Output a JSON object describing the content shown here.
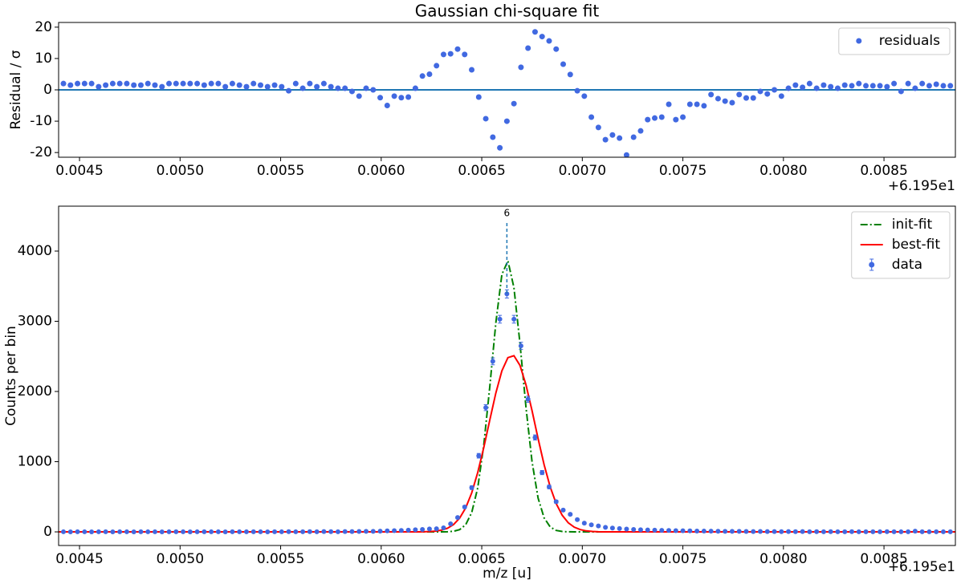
{
  "chart_data": [
    {
      "type": "scatter",
      "title": "Gaussian chi-square fit",
      "ylabel": "Residual / σ",
      "x_offset_label": "+6.195e1",
      "xlim": [
        0.004396,
        0.008855
      ],
      "xticks": [
        0.0045,
        {
          "value": 0.005,
          "label": "0.0050"
        },
        0.0055,
        {
          "value": 0.006,
          "label": "0.0060"
        },
        0.0065,
        {
          "value": 0.007,
          "label": "0.0070"
        },
        0.0075,
        {
          "value": 0.008,
          "label": "0.0080"
        },
        0.0085
      ],
      "ylim": [
        -21.5,
        21.5
      ],
      "yticks": [
        -20,
        -10,
        0,
        10,
        20
      ],
      "hline": 0,
      "hline_color": "#1f77b4",
      "legend": "upper right",
      "series": [
        {
          "name": "residuals",
          "color": "#4169e1",
          "x": [
            0.00442,
            0.004455,
            0.00449,
            0.004525,
            0.00456,
            0.004595,
            0.00463,
            0.004665,
            0.0047,
            0.004735,
            0.00477,
            0.004805,
            0.00484,
            0.004875,
            0.00491,
            0.004945,
            0.00498,
            0.005015,
            0.00505,
            0.005085,
            0.00512,
            0.005155,
            0.00519,
            0.005225,
            0.00526,
            0.005295,
            0.00533,
            0.005365,
            0.0054,
            0.005435,
            0.00547,
            0.005505,
            0.00554,
            0.005575,
            0.00561,
            0.005645,
            0.00568,
            0.005715,
            0.00575,
            0.005785,
            0.00582,
            0.005855,
            0.00589,
            0.005925,
            0.00596,
            0.005995,
            0.00603,
            0.006065,
            0.0061,
            0.006135,
            0.00617,
            0.006205,
            0.00624,
            0.006275,
            0.00631,
            0.006345,
            0.00638,
            0.006415,
            0.00645,
            0.006485,
            0.00652,
            0.006555,
            0.00659,
            0.006625,
            0.00666,
            0.006695,
            0.00673,
            0.006765,
            0.0068,
            0.006835,
            0.00687,
            0.006905,
            0.00694,
            0.006975,
            0.00701,
            0.007045,
            0.00708,
            0.007115,
            0.00715,
            0.007185,
            0.00722,
            0.007255,
            0.00729,
            0.007325,
            0.00736,
            0.007395,
            0.00743,
            0.007465,
            0.0075,
            0.007535,
            0.00757,
            0.007605,
            0.00764,
            0.007675,
            0.00771,
            0.007745,
            0.00778,
            0.007815,
            0.00785,
            0.007885,
            0.00792,
            0.007955,
            0.00799,
            0.008025,
            0.00806,
            0.008095,
            0.00813,
            0.008165,
            0.0082,
            0.008235,
            0.00827,
            0.008305,
            0.00834,
            0.008375,
            0.00841,
            0.008445,
            0.00848,
            0.008515,
            0.00855,
            0.008585,
            0.00862,
            0.008655,
            0.00869,
            0.008725,
            0.00876,
            0.008795,
            0.00883
          ],
          "values": [
            2,
            1.5,
            2,
            2,
            2,
            1,
            1.5,
            2,
            2,
            2,
            1.5,
            1.5,
            2,
            1.5,
            1,
            2,
            2,
            2,
            2,
            2,
            1.5,
            2,
            2,
            1,
            2,
            1.5,
            1,
            2,
            1.5,
            1,
            1.5,
            1,
            -0.3,
            2,
            0.5,
            2,
            1,
            2,
            1,
            0.5,
            0.5,
            -0.5,
            -2,
            0.5,
            0,
            -2.5,
            -5,
            -2,
            -2.5,
            -2.3,
            0.5,
            4.4,
            5,
            7.7,
            11.3,
            11.5,
            13,
            11.3,
            6.4,
            -2.3,
            -9.2,
            -15.1,
            -18.5,
            -10,
            -4.4,
            7.2,
            13.3,
            18.5,
            17,
            15.6,
            13,
            8.2,
            4.9,
            -0.3,
            -2,
            -8.7,
            -12,
            -15.9,
            -14.4,
            -15.4,
            -20.8,
            -15.1,
            -13.1,
            -9.5,
            -9,
            -8.7,
            -4.6,
            -9.5,
            -8.7,
            -4.6,
            -4.6,
            -5.1,
            -1.5,
            -2.8,
            -3.6,
            -4.1,
            -1.5,
            -2.6,
            -2.6,
            -0.5,
            -1.3,
            0,
            -2,
            0.5,
            1.5,
            0.8,
            2,
            0.5,
            1.5,
            1,
            0.5,
            1.5,
            1.3,
            2,
            1.3,
            1.3,
            1.3,
            1,
            2,
            -0.5,
            2,
            0.5,
            2,
            1.3,
            1.8,
            1.3,
            1.3
          ]
        }
      ]
    },
    {
      "type": "line",
      "xlabel": "m/z [u]",
      "ylabel": "Counts per bin",
      "x_offset_label": "+6.195e1",
      "xlim": [
        0.004396,
        0.008855
      ],
      "xticks": [
        0.0045,
        {
          "value": 0.005,
          "label": "0.0050"
        },
        0.0055,
        {
          "value": 0.006,
          "label": "0.0060"
        },
        0.0065,
        {
          "value": 0.007,
          "label": "0.0070"
        },
        0.0075,
        {
          "value": 0.008,
          "label": "0.0080"
        },
        0.0085
      ],
      "ylim": [
        -194,
        4640
      ],
      "yticks": [
        0,
        1000,
        2000,
        3000,
        4000
      ],
      "legend": "upper right",
      "annotations": [
        {
          "text": "6",
          "x": 0.006625,
          "y": 4400,
          "color": "#1f77b4"
        }
      ],
      "series": [
        {
          "name": "init-fit",
          "kind": "line",
          "dash": "dashdot",
          "color": "#008000",
          "x": [
            0.004396,
            0.006,
            0.00603,
            0.00606,
            0.00609,
            0.00612,
            0.00615,
            0.00618,
            0.00621,
            0.00624,
            0.00627,
            0.0063,
            0.00633,
            0.00636,
            0.00639,
            0.00642,
            0.00645,
            0.00648,
            0.00651,
            0.00654,
            0.00657,
            0.0066,
            0.00663,
            0.00666,
            0.00669,
            0.00672,
            0.00675,
            0.00678,
            0.00681,
            0.00684,
            0.00687,
            0.0069,
            0.00693,
            0.00696,
            0.00699,
            0.00702,
            0.00705,
            0.00708,
            0.00711,
            0.00714,
            0.00717,
            0.0072,
            0.00723,
            0.00726,
            0.00729,
            0.00732,
            0.00735,
            0.00738,
            0.008855
          ],
          "values": [
            0,
            0,
            0,
            0,
            0,
            0,
            0,
            0,
            0,
            0,
            0,
            0.4,
            2.1,
            8.9,
            32,
            102,
            274,
            627,
            1236,
            2069,
            2977,
            3666,
            3862,
            3480,
            2685,
            1772,
            1000,
            483,
            200,
            71,
            21,
            5.5,
            1.2,
            0.2,
            0,
            0,
            0,
            0,
            0,
            0,
            0,
            0,
            0,
            0,
            0,
            0,
            0,
            0,
            0
          ]
        },
        {
          "name": "best-fit",
          "kind": "line",
          "dash": "solid",
          "color": "#ff0000",
          "x": [
            0.004396,
            0.006,
            0.00603,
            0.00606,
            0.00609,
            0.00612,
            0.00615,
            0.00618,
            0.00621,
            0.00624,
            0.00627,
            0.0063,
            0.00633,
            0.00636,
            0.00639,
            0.00642,
            0.00645,
            0.00648,
            0.00651,
            0.00654,
            0.00657,
            0.0066,
            0.00663,
            0.00666,
            0.00669,
            0.00672,
            0.00675,
            0.00678,
            0.00681,
            0.00684,
            0.00687,
            0.0069,
            0.00693,
            0.00696,
            0.00699,
            0.00702,
            0.00705,
            0.00708,
            0.00711,
            0.00714,
            0.00717,
            0.0072,
            0.00723,
            0.00726,
            0.00729,
            0.00732,
            0.00735,
            0.00738,
            0.008855
          ],
          "values": [
            0,
            0,
            0,
            0,
            0.02,
            0.06,
            0.2,
            0.6,
            1.7,
            4.4,
            10.7,
            24.6,
            52.5,
            105,
            196,
            341,
            555,
            846,
            1201,
            1594,
            1978,
            2293,
            2482,
            2510,
            2372,
            2094,
            1727,
            1330,
            957,
            644,
            404,
            237,
            130,
            67,
            32,
            14,
            6,
            2.3,
            0.8,
            0.3,
            0,
            0,
            0,
            0,
            0,
            0,
            0,
            0,
            0
          ]
        },
        {
          "name": "data",
          "kind": "errorbar",
          "color": "#4169e1",
          "x": [
            0.00442,
            0.004455,
            0.00449,
            0.004525,
            0.00456,
            0.004595,
            0.00463,
            0.004665,
            0.0047,
            0.004735,
            0.00477,
            0.004805,
            0.00484,
            0.004875,
            0.00491,
            0.004945,
            0.00498,
            0.005015,
            0.00505,
            0.005085,
            0.00512,
            0.005155,
            0.00519,
            0.005225,
            0.00526,
            0.005295,
            0.00533,
            0.005365,
            0.0054,
            0.005435,
            0.00547,
            0.005505,
            0.00554,
            0.005575,
            0.00561,
            0.005645,
            0.00568,
            0.005715,
            0.00575,
            0.005785,
            0.00582,
            0.005855,
            0.00589,
            0.005925,
            0.00596,
            0.005995,
            0.00603,
            0.006065,
            0.0061,
            0.006135,
            0.00617,
            0.006205,
            0.00624,
            0.006275,
            0.00631,
            0.006345,
            0.00638,
            0.006415,
            0.00645,
            0.006485,
            0.00652,
            0.006555,
            0.00659,
            0.006625,
            0.00666,
            0.006695,
            0.00673,
            0.006765,
            0.0068,
            0.006835,
            0.00687,
            0.006905,
            0.00694,
            0.006975,
            0.00701,
            0.007045,
            0.00708,
            0.007115,
            0.00715,
            0.007185,
            0.00722,
            0.007255,
            0.00729,
            0.007325,
            0.00736,
            0.007395,
            0.00743,
            0.007465,
            0.0075,
            0.007535,
            0.00757,
            0.007605,
            0.00764,
            0.007675,
            0.00771,
            0.007745,
            0.00778,
            0.007815,
            0.00785,
            0.007885,
            0.00792,
            0.007955,
            0.00799,
            0.008025,
            0.00806,
            0.008095,
            0.00813,
            0.008165,
            0.0082,
            0.008235,
            0.00827,
            0.008305,
            0.00834,
            0.008375,
            0.00841,
            0.008445,
            0.00848,
            0.008515,
            0.00855,
            0.008585,
            0.00862,
            0.008655,
            0.00869,
            0.008725,
            0.00876,
            0.008795,
            0.00883
          ],
          "values": [
            1,
            0,
            2,
            1,
            0,
            1,
            2,
            0,
            1,
            1,
            0,
            2,
            1,
            1,
            0,
            1,
            2,
            1,
            0,
            1,
            2,
            1,
            1,
            0,
            2,
            1,
            1,
            2,
            1,
            0,
            2,
            1,
            3,
            1,
            2,
            3,
            2,
            4,
            3,
            2,
            5,
            4,
            6,
            8,
            7,
            10,
            14,
            18,
            20,
            25,
            30,
            35,
            42,
            45,
            57,
            115,
            205,
            355,
            630,
            1085,
            1770,
            2430,
            3030,
            3390,
            3030,
            2650,
            1890,
            1345,
            845,
            640,
            430,
            310,
            250,
            175,
            125,
            100,
            85,
            65,
            55,
            48,
            40,
            35,
            30,
            28,
            25,
            22,
            20,
            18,
            16,
            14,
            12,
            11,
            10,
            9,
            8,
            7,
            7,
            6,
            5,
            6,
            4,
            5,
            3,
            4,
            3,
            4,
            2,
            3,
            2,
            3,
            2,
            2,
            3,
            1,
            2,
            2,
            1,
            3,
            2,
            1,
            2,
            10,
            2,
            1,
            2,
            1,
            2
          ],
          "errors": [
            1,
            1,
            1.4,
            1,
            1,
            1,
            1.4,
            1,
            1,
            1,
            1,
            1.4,
            1,
            1,
            1,
            1,
            1.4,
            1,
            1,
            1,
            1.4,
            1,
            1,
            1,
            1.4,
            1,
            1,
            1.4,
            1,
            1,
            1.4,
            1,
            1.7,
            1,
            1.4,
            1.7,
            1.4,
            2,
            1.7,
            1.4,
            2.2,
            2,
            2.4,
            2.8,
            2.6,
            3.2,
            3.7,
            4.2,
            4.5,
            5,
            5.5,
            5.9,
            6.5,
            6.7,
            7.5,
            10.7,
            14.3,
            18.8,
            25.1,
            32.9,
            42.1,
            49.3,
            55,
            58.2,
            55,
            51.5,
            43.5,
            36.7,
            29.1,
            25.3,
            20.7,
            17.6,
            15.8,
            13.2,
            11.2,
            10,
            9.2,
            8.1,
            7.4,
            6.9,
            6.3,
            5.9,
            5.5,
            5.3,
            5,
            4.7,
            4.5,
            4.2,
            4,
            3.7,
            3.5,
            3.3,
            3.2,
            3,
            2.8,
            2.6,
            2.6,
            2.4,
            2.2,
            2.4,
            2,
            2.2,
            1.7,
            2,
            1.7,
            2,
            1.4,
            1.7,
            1.4,
            1.7,
            1.4,
            1.4,
            1.7,
            1,
            1.4,
            1.4,
            1,
            1.7,
            1.4,
            1,
            1.4,
            3.2,
            1.4,
            1,
            1.4,
            1,
            1.4
          ]
        }
      ]
    }
  ]
}
